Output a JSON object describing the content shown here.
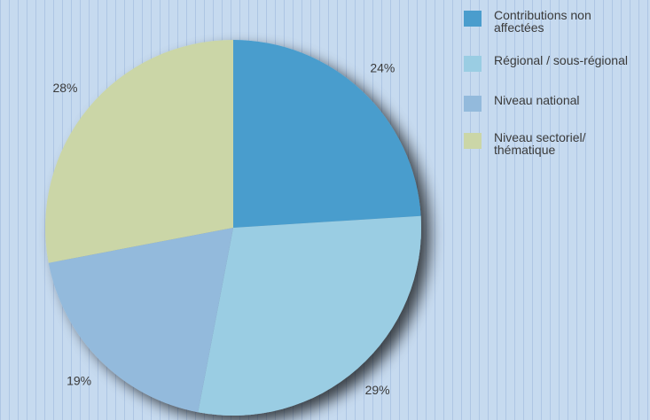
{
  "chart_data": {
    "type": "pie",
    "categories": [
      "Contributions non affectées",
      "Régional / sous-régional",
      "Niveau national",
      "Niveau sectoriel/ thématique"
    ],
    "values": [
      24,
      29,
      19,
      28
    ],
    "value_labels": [
      "24%",
      "29%",
      "19%",
      "28%"
    ],
    "colors": [
      "#4a9dcd",
      "#9acde3",
      "#93badc",
      "#cbd6a7"
    ],
    "legend": "top-right"
  }
}
